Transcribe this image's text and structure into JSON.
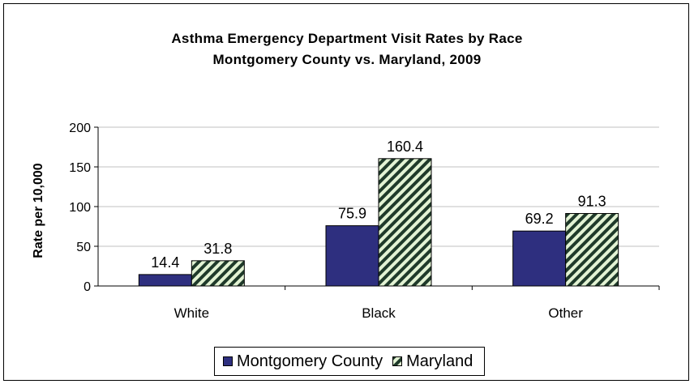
{
  "chart_data": {
    "type": "bar",
    "title": "Asthma Emergency Department Visit Rates by Race",
    "subtitle": "Montgomery County vs. Maryland, 2009",
    "xlabel": "",
    "ylabel": "Rate per 10,000",
    "ylim": [
      0,
      200
    ],
    "yticks": [
      "0",
      "50",
      "100",
      "150",
      "200"
    ],
    "categories": [
      "White",
      "Black",
      "Other"
    ],
    "series": [
      {
        "name": "Montgomery County",
        "values": [
          14.4,
          75.9,
          69.2
        ],
        "labels": [
          "14.4",
          "75.9",
          "69.2"
        ],
        "color": "#2e2f7f",
        "pattern": "solid"
      },
      {
        "name": "Maryland",
        "values": [
          31.8,
          160.4,
          91.3
        ],
        "labels": [
          "31.8",
          "160.4",
          "91.3"
        ],
        "color": "#1f3a2a",
        "pattern": "diagonal-stripes",
        "stripe_light": "#e3f3d4"
      }
    ],
    "grid": true,
    "legend_position": "bottom"
  }
}
